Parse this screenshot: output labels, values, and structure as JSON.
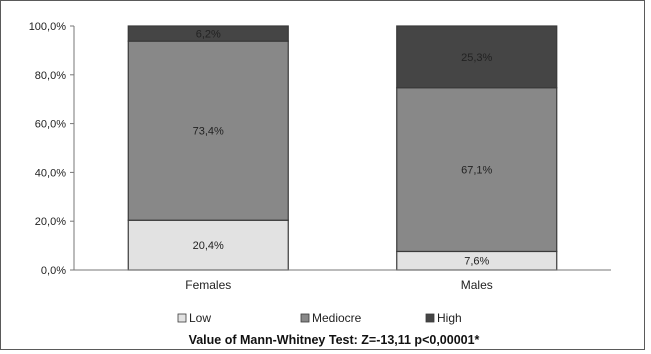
{
  "chart_data": {
    "type": "bar",
    "stacked": true,
    "percent": true,
    "categories": [
      "Females",
      "Males"
    ],
    "series": [
      {
        "name": "Low",
        "values": [
          20.4,
          7.6
        ],
        "labels": [
          "20,4%",
          "7,6%"
        ],
        "color": "#e2e2e2"
      },
      {
        "name": "Mediocre",
        "values": [
          73.4,
          67.1
        ],
        "labels": [
          "73,4%",
          "67,1%"
        ],
        "color": "#888888"
      },
      {
        "name": "High",
        "values": [
          6.2,
          25.3
        ],
        "labels": [
          "6,2%",
          "25,3%"
        ],
        "color": "#454545"
      }
    ],
    "yticks": [
      "0,0%",
      "20,0%",
      "40,0%",
      "60,0%",
      "80,0%",
      "100,0%"
    ],
    "ylim": [
      0,
      100
    ],
    "grid": false,
    "legend_position": "bottom",
    "title": "",
    "xlabel": "",
    "ylabel": ""
  },
  "footnote": "Value of Mann-Whitney Test: Z=-13,11  p<0,00001*"
}
